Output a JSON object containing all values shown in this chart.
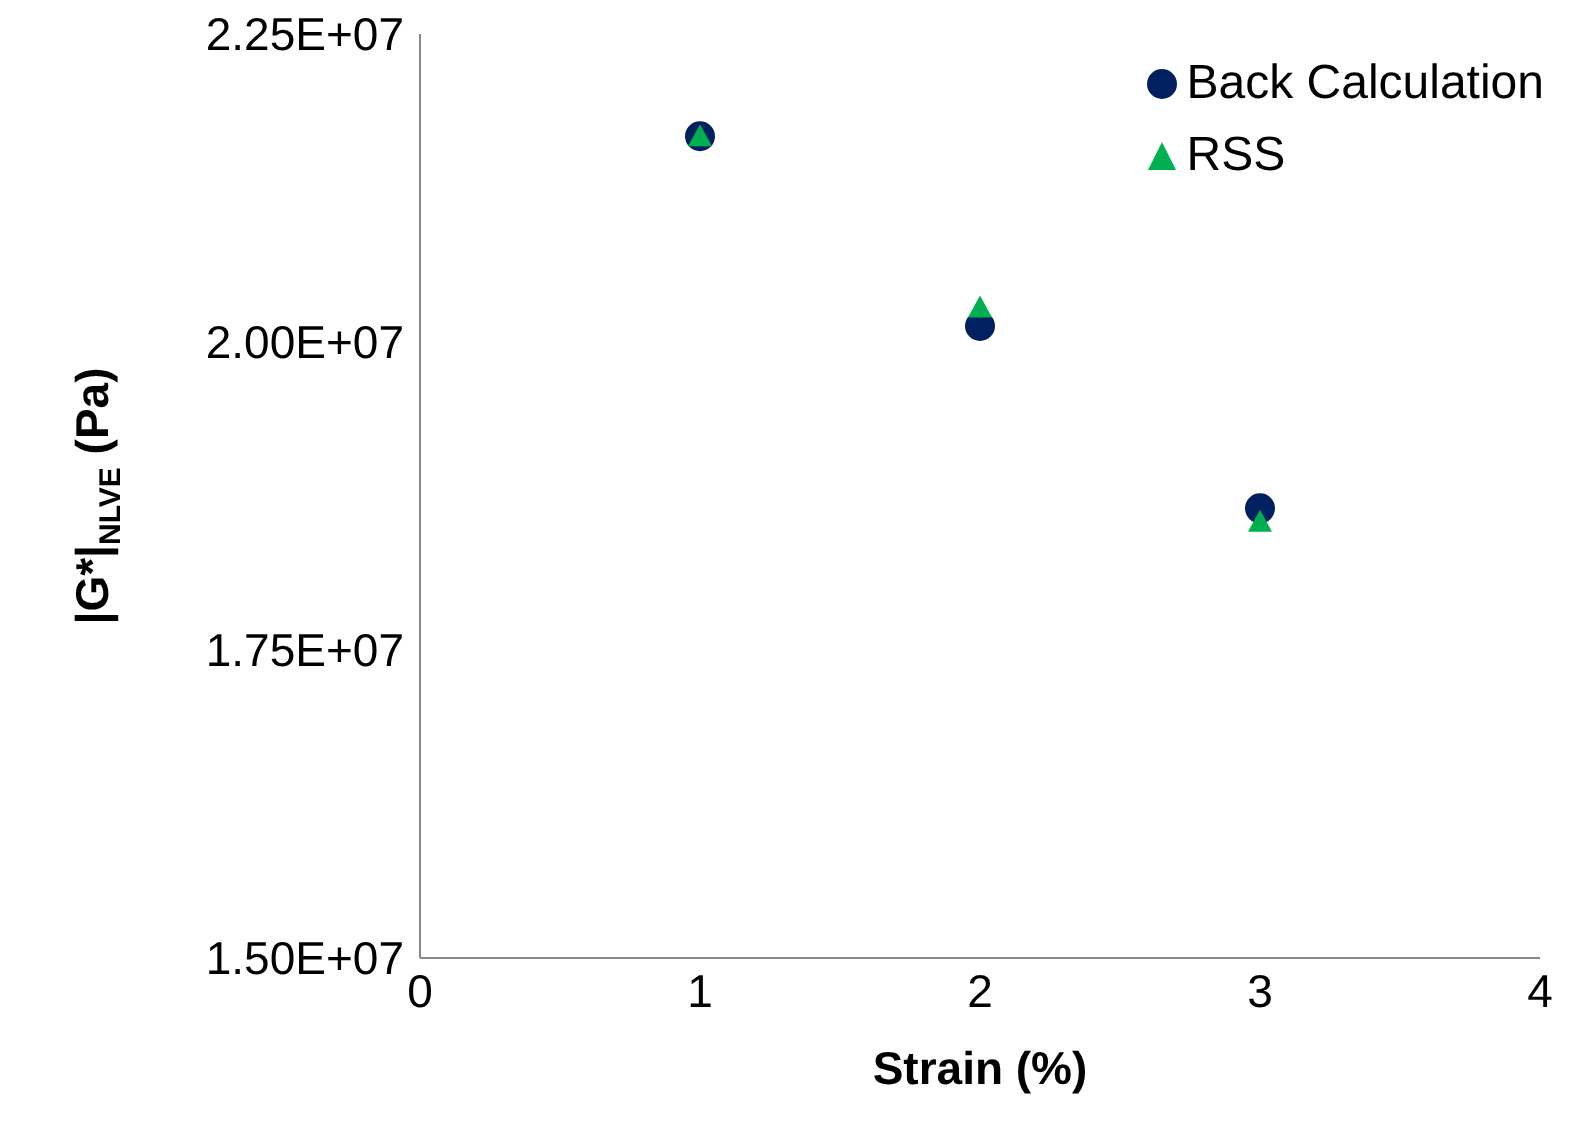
{
  "chart_data": {
    "type": "scatter",
    "xlabel": "Strain (%)",
    "ylabel": "|G*|$_{NLVE}$ (Pa)",
    "x": [
      1,
      2,
      3
    ],
    "series": [
      {
        "name": "Back Calculation",
        "color": "#002060",
        "marker": "circle",
        "values": [
          21670000,
          20130000,
          18650000
        ]
      },
      {
        "name": "RSS",
        "color": "#00b050",
        "marker": "triangle",
        "values": [
          21670000,
          20280000,
          18540000
        ]
      }
    ],
    "xlim": [
      0,
      4
    ],
    "xticks": [
      0,
      1,
      2,
      3,
      4
    ],
    "ylim": [
      15000000,
      22500000
    ],
    "yticks": [
      {
        "value": 15000000,
        "label": "1.50E+07"
      },
      {
        "value": 17500000,
        "label": "1.75E+07"
      },
      {
        "value": 20000000,
        "label": "2.00E+07"
      },
      {
        "value": 22500000,
        "label": "2.25E+07"
      }
    ],
    "grid": false,
    "legend": "top right"
  }
}
